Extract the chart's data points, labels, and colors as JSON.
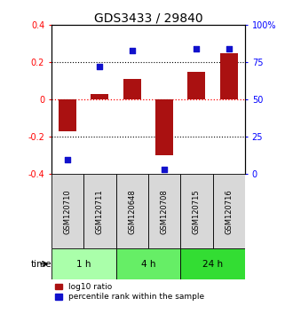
{
  "title": "GDS3433 / 29840",
  "samples": [
    "GSM120710",
    "GSM120711",
    "GSM120648",
    "GSM120708",
    "GSM120715",
    "GSM120716"
  ],
  "log10_ratio": [
    -0.17,
    0.03,
    0.11,
    -0.3,
    0.15,
    0.25
  ],
  "percentile_rank": [
    10,
    72,
    83,
    3,
    84,
    84
  ],
  "bar_color": "#aa1111",
  "dot_color": "#1111cc",
  "ylim_left": [
    -0.4,
    0.4
  ],
  "ylim_right": [
    0,
    100
  ],
  "yticks_left": [
    -0.4,
    -0.2,
    0.0,
    0.2,
    0.4
  ],
  "yticks_right": [
    0,
    25,
    50,
    75,
    100
  ],
  "ytick_labels_left": [
    "-0.4",
    "-0.2",
    "0",
    "0.2",
    "0.4"
  ],
  "ytick_labels_right": [
    "0",
    "25",
    "50",
    "75",
    "100%"
  ],
  "hlines_black": [
    -0.2,
    0.2
  ],
  "hline_red": 0.0,
  "groups": [
    {
      "label": "1 h",
      "samples": [
        0,
        1
      ],
      "color": "#aaffaa"
    },
    {
      "label": "4 h",
      "samples": [
        2,
        3
      ],
      "color": "#66ee66"
    },
    {
      "label": "24 h",
      "samples": [
        4,
        5
      ],
      "color": "#33dd33"
    }
  ],
  "time_label": "time",
  "legend_bar_label": "log10 ratio",
  "legend_dot_label": "percentile rank within the sample",
  "background_color": "#ffffff",
  "plot_bg": "#ffffff",
  "bar_width": 0.55,
  "title_fontsize": 10,
  "tick_fontsize": 7,
  "label_fontsize": 7.5,
  "sample_fontsize": 6,
  "group_fontsize": 7.5
}
